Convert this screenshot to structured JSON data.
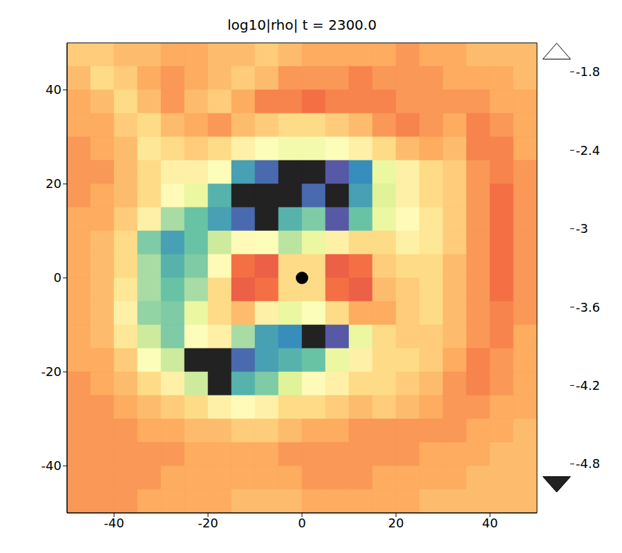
{
  "chart_data": {
    "type": "heatmap",
    "title": "log10|rho|  t =  2300.0",
    "x": [
      -47.5,
      -42.5,
      -37.5,
      -32.5,
      -27.5,
      -22.5,
      -17.5,
      -12.5,
      -7.5,
      -2.5,
      2.5,
      7.5,
      12.5,
      17.5,
      22.5,
      27.5,
      32.5,
      37.5,
      42.5,
      47.5
    ],
    "y": [
      47.5,
      42.5,
      37.5,
      32.5,
      27.5,
      22.5,
      17.5,
      12.5,
      7.5,
      2.5,
      -2.5,
      -7.5,
      -12.5,
      -17.5,
      -22.5,
      -27.5,
      -32.5,
      -37.5,
      -42.5,
      -47.5
    ],
    "values": [
      [
        -2.9,
        -2.9,
        -2.8,
        -2.8,
        -2.7,
        -2.7,
        -2.8,
        -2.8,
        -2.9,
        -2.8,
        -2.7,
        -2.7,
        -2.7,
        -2.7,
        -2.6,
        -2.7,
        -2.7,
        -2.8,
        -2.8,
        -2.8
      ],
      [
        -2.8,
        -3.0,
        -2.9,
        -2.7,
        -2.6,
        -2.7,
        -2.8,
        -2.9,
        -2.8,
        -2.6,
        -2.6,
        -2.6,
        -2.5,
        -2.6,
        -2.6,
        -2.6,
        -2.7,
        -2.7,
        -2.7,
        -2.8
      ],
      [
        -2.7,
        -2.8,
        -3.0,
        -2.8,
        -2.6,
        -2.8,
        -2.9,
        -2.7,
        -2.5,
        -2.5,
        -2.4,
        -2.5,
        -2.5,
        -2.5,
        -2.6,
        -2.6,
        -2.6,
        -2.6,
        -2.7,
        -2.7
      ],
      [
        -2.7,
        -2.7,
        -2.9,
        -3.0,
        -2.8,
        -2.7,
        -2.6,
        -2.8,
        -2.9,
        -3.0,
        -3.0,
        -2.9,
        -2.8,
        -2.6,
        -2.5,
        -2.6,
        -2.7,
        -2.5,
        -2.6,
        -2.7
      ],
      [
        -2.6,
        -2.7,
        -2.8,
        -3.1,
        -3.0,
        -2.9,
        -3.0,
        -3.2,
        -3.4,
        -3.5,
        -3.5,
        -3.4,
        -3.2,
        -3.0,
        -2.8,
        -2.7,
        -2.8,
        -2.5,
        -2.5,
        -2.7
      ],
      [
        -2.6,
        -2.6,
        -2.8,
        -3.0,
        -3.2,
        -3.2,
        -3.4,
        -4.5,
        -4.8,
        -5.0,
        -5.0,
        -4.9,
        -4.6,
        -3.6,
        -3.2,
        -3.0,
        -2.9,
        -2.6,
        -2.5,
        -2.6
      ],
      [
        -2.6,
        -2.7,
        -2.8,
        -3.0,
        -3.3,
        -3.6,
        -4.4,
        -5.0,
        -5.1,
        -5.0,
        -4.8,
        -5.0,
        -4.5,
        -3.7,
        -3.2,
        -3.0,
        -2.9,
        -2.6,
        -2.4,
        -2.6
      ],
      [
        -2.7,
        -2.7,
        -2.9,
        -3.2,
        -4.0,
        -4.3,
        -4.5,
        -4.8,
        -5.0,
        -4.4,
        -4.2,
        -4.9,
        -4.3,
        -3.6,
        -3.3,
        -3.1,
        -2.9,
        -2.6,
        -2.4,
        -2.6
      ],
      [
        -2.7,
        -2.8,
        -3.0,
        -4.2,
        -4.5,
        -4.3,
        -3.8,
        -3.3,
        -3.4,
        -3.9,
        -3.6,
        -3.2,
        -3.0,
        -3.0,
        -3.2,
        -3.1,
        -2.9,
        -2.6,
        -2.4,
        -2.6
      ],
      [
        -2.7,
        -2.8,
        -3.0,
        -4.0,
        -4.4,
        -4.2,
        -3.3,
        -2.4,
        -2.3,
        -3.0,
        -3.0,
        -2.3,
        -2.4,
        -2.9,
        -3.0,
        -3.0,
        -2.8,
        -2.6,
        -2.4,
        -2.6
      ],
      [
        -2.7,
        -2.8,
        -3.1,
        -4.0,
        -4.3,
        -4.0,
        -3.0,
        -2.3,
        -2.4,
        -3.0,
        -3.0,
        -2.4,
        -2.3,
        -2.8,
        -2.9,
        -3.0,
        -2.8,
        -2.6,
        -2.4,
        -2.6
      ],
      [
        -2.7,
        -2.8,
        -3.2,
        -4.1,
        -4.2,
        -3.6,
        -3.0,
        -2.8,
        -3.2,
        -3.6,
        -3.4,
        -3.0,
        -2.7,
        -2.7,
        -2.9,
        -3.0,
        -2.8,
        -2.6,
        -2.5,
        -2.6
      ],
      [
        -2.7,
        -2.8,
        -3.1,
        -3.8,
        -4.2,
        -3.4,
        -3.2,
        -4.0,
        -4.5,
        -4.6,
        -5.0,
        -4.9,
        -3.6,
        -3.0,
        -2.9,
        -2.9,
        -2.8,
        -2.6,
        -2.5,
        -2.7
      ],
      [
        -2.7,
        -2.7,
        -2.9,
        -3.4,
        -3.8,
        -5.0,
        -5.0,
        -4.8,
        -4.5,
        -4.4,
        -4.3,
        -3.6,
        -3.2,
        -3.0,
        -3.0,
        -2.9,
        -2.7,
        -2.5,
        -2.6,
        -2.7
      ],
      [
        -2.6,
        -2.7,
        -2.8,
        -3.0,
        -3.2,
        -3.8,
        -5.0,
        -4.4,
        -4.2,
        -3.7,
        -3.3,
        -3.2,
        -3.0,
        -3.0,
        -2.9,
        -2.8,
        -2.6,
        -2.5,
        -2.6,
        -2.7
      ],
      [
        -2.6,
        -2.6,
        -2.7,
        -2.8,
        -2.9,
        -3.0,
        -3.2,
        -3.3,
        -3.2,
        -3.0,
        -3.0,
        -2.9,
        -2.8,
        -2.9,
        -2.8,
        -2.7,
        -2.6,
        -2.6,
        -2.7,
        -2.7
      ],
      [
        -2.6,
        -2.6,
        -2.6,
        -2.7,
        -2.7,
        -2.8,
        -2.8,
        -2.9,
        -2.9,
        -2.8,
        -2.7,
        -2.7,
        -2.6,
        -2.6,
        -2.6,
        -2.6,
        -2.6,
        -2.7,
        -2.7,
        -2.8
      ],
      [
        -2.6,
        -2.6,
        -2.6,
        -2.6,
        -2.6,
        -2.7,
        -2.7,
        -2.7,
        -2.7,
        -2.6,
        -2.6,
        -2.6,
        -2.6,
        -2.6,
        -2.6,
        -2.7,
        -2.7,
        -2.7,
        -2.8,
        -2.8
      ],
      [
        -2.6,
        -2.6,
        -2.6,
        -2.6,
        -2.7,
        -2.7,
        -2.7,
        -2.7,
        -2.7,
        -2.7,
        -2.6,
        -2.6,
        -2.6,
        -2.7,
        -2.7,
        -2.7,
        -2.7,
        -2.8,
        -2.8,
        -2.8
      ],
      [
        -2.6,
        -2.6,
        -2.6,
        -2.7,
        -2.7,
        -2.7,
        -2.7,
        -2.8,
        -2.8,
        -2.8,
        -2.7,
        -2.7,
        -2.7,
        -2.7,
        -2.7,
        -2.8,
        -2.8,
        -2.8,
        -2.8,
        -2.8
      ]
    ],
    "xlim": [
      -50,
      50
    ],
    "ylim": [
      -50,
      50
    ],
    "xticks": [
      -40,
      -20,
      0,
      20,
      40
    ],
    "yticks": [
      -40,
      -20,
      0,
      20,
      40
    ],
    "colorbar": {
      "range": [
        -4.9,
        -1.7
      ],
      "ticks": [
        -1.8,
        -2.4,
        -3,
        -3.6,
        -4.2,
        -4.8
      ]
    },
    "points": {
      "x": [
        0
      ],
      "y": [
        0
      ],
      "color": "#000000",
      "marker": "circle"
    },
    "grid": false
  }
}
